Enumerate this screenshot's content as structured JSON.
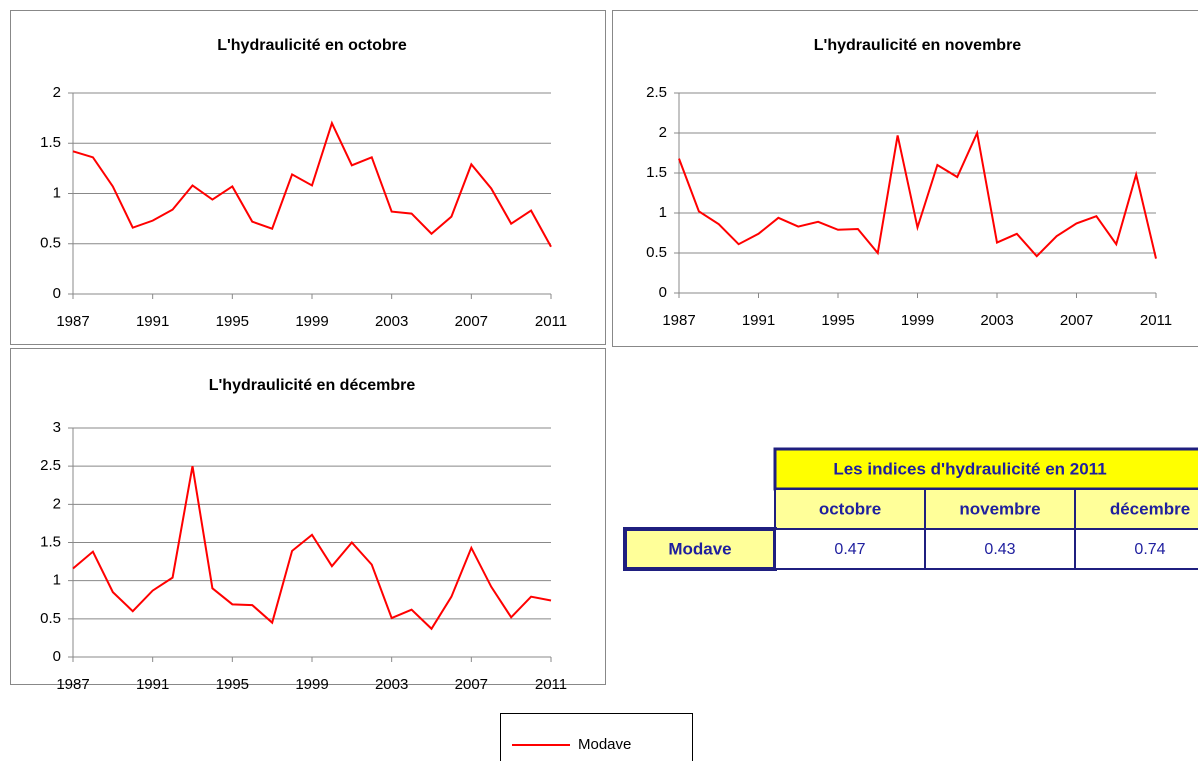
{
  "chart_data": [
    {
      "type": "line",
      "title": "L'hydraulicité en octobre",
      "x": [
        1987,
        1988,
        1989,
        1990,
        1991,
        1992,
        1993,
        1994,
        1995,
        1996,
        1997,
        1998,
        1999,
        2000,
        2001,
        2002,
        2003,
        2004,
        2005,
        2006,
        2007,
        2008,
        2009,
        2010,
        2011
      ],
      "xlim": [
        1987,
        2011
      ],
      "xticks": [
        1987,
        1991,
        1995,
        1999,
        2003,
        2007,
        2011
      ],
      "ylim": [
        0,
        2
      ],
      "yticks": [
        0,
        0.5,
        1,
        1.5,
        2
      ],
      "grid": true,
      "series": [
        {
          "name": "Modave",
          "color": "#ff0000",
          "values": [
            1.42,
            1.36,
            1.07,
            0.66,
            0.73,
            0.84,
            1.08,
            0.94,
            1.07,
            0.72,
            0.65,
            1.19,
            1.08,
            1.7,
            1.28,
            1.36,
            0.82,
            0.8,
            0.6,
            0.77,
            1.29,
            1.05,
            0.7,
            0.83,
            0.47
          ]
        }
      ]
    },
    {
      "type": "line",
      "title": "L'hydraulicité en novembre",
      "x": [
        1987,
        1988,
        1989,
        1990,
        1991,
        1992,
        1993,
        1994,
        1995,
        1996,
        1997,
        1998,
        1999,
        2000,
        2001,
        2002,
        2003,
        2004,
        2005,
        2006,
        2007,
        2008,
        2009,
        2010,
        2011
      ],
      "xlim": [
        1987,
        2011
      ],
      "xticks": [
        1987,
        1991,
        1995,
        1999,
        2003,
        2007,
        2011
      ],
      "ylim": [
        0,
        2.5
      ],
      "yticks": [
        0,
        0.5,
        1,
        1.5,
        2,
        2.5
      ],
      "grid": true,
      "series": [
        {
          "color": "#ff0000",
          "values": [
            1.68,
            1.02,
            0.86,
            0.61,
            0.74,
            0.94,
            0.83,
            0.89,
            0.79,
            0.8,
            0.5,
            1.97,
            0.82,
            1.6,
            1.45,
            2.0,
            0.63,
            0.74,
            0.46,
            0.71,
            0.87,
            0.96,
            0.61,
            1.48,
            0.43
          ]
        }
      ]
    },
    {
      "type": "line",
      "title": "L'hydraulicité en décembre",
      "x": [
        1987,
        1988,
        1989,
        1990,
        1991,
        1992,
        1993,
        1994,
        1995,
        1996,
        1997,
        1998,
        1999,
        2000,
        2001,
        2002,
        2003,
        2004,
        2005,
        2006,
        2007,
        2008,
        2009,
        2010,
        2011
      ],
      "xlim": [
        1987,
        2011
      ],
      "xticks": [
        1987,
        1991,
        1995,
        1999,
        2003,
        2007,
        2011
      ],
      "ylim": [
        0,
        3
      ],
      "yticks": [
        0,
        0.5,
        1,
        1.5,
        2,
        2.5,
        3
      ],
      "grid": true,
      "series": [
        {
          "color": "#ff0000",
          "values": [
            1.16,
            1.38,
            0.85,
            0.6,
            0.87,
            1.04,
            2.5,
            0.9,
            0.69,
            0.68,
            0.45,
            1.39,
            1.6,
            1.19,
            1.5,
            1.21,
            0.51,
            0.62,
            0.37,
            0.79,
            1.43,
            0.92,
            0.52,
            0.79,
            0.74
          ]
        }
      ]
    }
  ],
  "table": {
    "title": "Les indices d'hydraulicité en 2011",
    "columns": [
      "octobre",
      "novembre",
      "décembre"
    ],
    "rows": [
      {
        "label": "Modave",
        "values": [
          0.47,
          0.43,
          0.74
        ]
      }
    ]
  }
}
